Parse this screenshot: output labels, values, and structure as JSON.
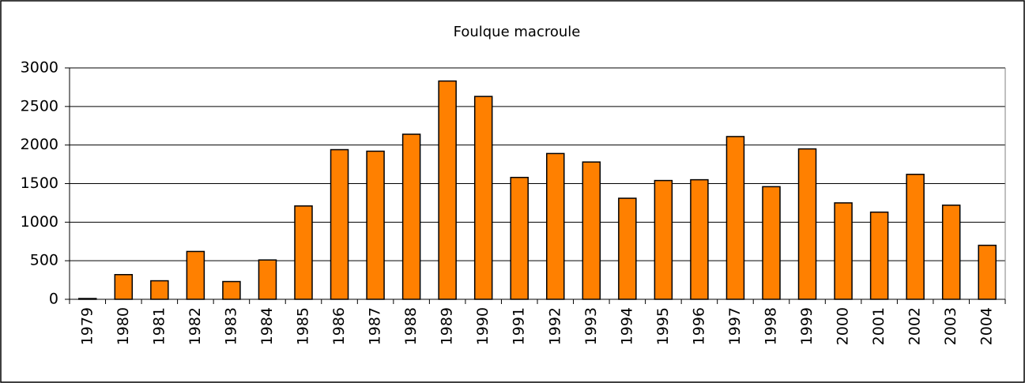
{
  "chart_data": {
    "type": "bar",
    "title": "Foulque macroule",
    "categories": [
      "1979",
      "1980",
      "1981",
      "1982",
      "1983",
      "1984",
      "1985",
      "1986",
      "1987",
      "1988",
      "1989",
      "1990",
      "1991",
      "1992",
      "1993",
      "1994",
      "1995",
      "1996",
      "1997",
      "1998",
      "1999",
      "2000",
      "2001",
      "2002",
      "2003",
      "2004"
    ],
    "values": [
      10,
      320,
      240,
      620,
      230,
      510,
      1210,
      1940,
      1920,
      2140,
      2830,
      2630,
      1580,
      1890,
      1780,
      1310,
      1540,
      1550,
      2110,
      1460,
      1950,
      1250,
      1130,
      1620,
      1220,
      700
    ],
    "color": "#ff8000",
    "ylim": [
      0,
      3000
    ],
    "yticks": [
      0,
      500,
      1000,
      1500,
      2000,
      2500,
      3000
    ],
    "grid": true
  }
}
